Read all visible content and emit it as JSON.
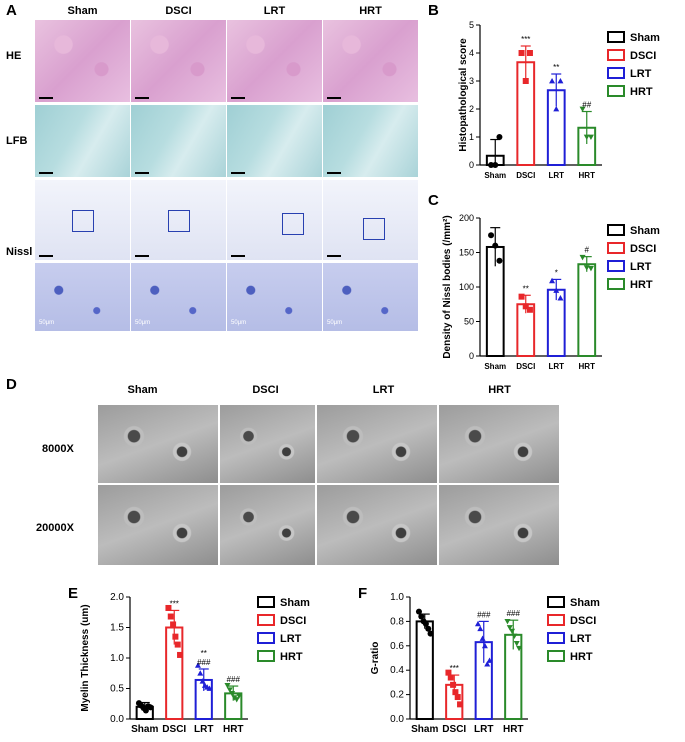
{
  "panel_letters": {
    "a": "A",
    "b": "B",
    "c": "C",
    "d": "D",
    "e": "E",
    "f": "F"
  },
  "panel_a": {
    "columns": [
      "Sham",
      "DSCI",
      "LRT",
      "HRT"
    ],
    "rows": [
      "HE",
      "LFB",
      "Nissl"
    ],
    "scale_label": "50μm"
  },
  "panel_d": {
    "columns": [
      "Sham",
      "DSCI",
      "LRT",
      "HRT"
    ],
    "rows": [
      "8000X",
      "20000X"
    ]
  },
  "colors": {
    "Sham": "#000000",
    "DSCI": "#e8272a",
    "LRT": "#1f1fd6",
    "HRT": "#2a8a2a"
  },
  "chart_data": [
    {
      "id": "B",
      "type": "bar",
      "categories": [
        "Sham",
        "DSCI",
        "LRT",
        "HRT"
      ],
      "values": [
        0.33,
        3.67,
        2.67,
        1.33
      ],
      "errors": [
        0.58,
        0.58,
        0.58,
        0.58
      ],
      "points": [
        [
          0,
          0,
          1
        ],
        [
          4,
          3,
          4
        ],
        [
          3,
          2,
          3
        ],
        [
          2,
          1,
          1
        ]
      ],
      "markers": [
        "circle",
        "square",
        "triangle",
        "triangle-down"
      ],
      "significance": [
        "",
        "***",
        "**",
        "##"
      ],
      "ylabel": "Histopathological score",
      "ylim": [
        0,
        5
      ],
      "yticks": [
        0,
        1,
        2,
        3,
        4,
        5
      ],
      "legend": [
        "Sham",
        "DSCI",
        "LRT",
        "HRT"
      ],
      "legend_position": "right"
    },
    {
      "id": "C",
      "type": "bar",
      "categories": [
        "Sham",
        "DSCI",
        "LRT",
        "HRT"
      ],
      "values": [
        158,
        75,
        96,
        133
      ],
      "errors": [
        28,
        13,
        15,
        11
      ],
      "points": [
        [
          175,
          160,
          138
        ],
        [
          86,
          72,
          67
        ],
        [
          109,
          95,
          84
        ],
        [
          143,
          128,
          127
        ]
      ],
      "markers": [
        "circle",
        "square",
        "triangle",
        "triangle-down"
      ],
      "significance": [
        "",
        "**",
        "*",
        "#"
      ],
      "ylabel": "Density of Nissl bodies (/mm²)",
      "ylim": [
        0,
        200
      ],
      "yticks": [
        0,
        50,
        100,
        150,
        200
      ],
      "legend": [
        "Sham",
        "DSCI",
        "LRT",
        "HRT"
      ],
      "legend_position": "right"
    },
    {
      "id": "E",
      "type": "bar",
      "categories": [
        "Sham",
        "DSCI",
        "LRT",
        "HRT"
      ],
      "values": [
        0.2,
        1.5,
        0.64,
        0.42
      ],
      "errors": [
        0.07,
        0.28,
        0.18,
        0.12
      ],
      "points": [
        [
          0.26,
          0.22,
          0.18,
          0.14,
          0.21,
          0.19
        ],
        [
          1.82,
          1.68,
          1.55,
          1.35,
          1.22,
          1.05
        ],
        [
          0.88,
          0.75,
          0.62,
          0.55,
          0.52,
          0.5
        ],
        [
          0.55,
          0.48,
          0.42,
          0.35,
          0.32,
          0.38
        ]
      ],
      "markers": [
        "circle",
        "square",
        "triangle",
        "triangle-down"
      ],
      "significance": [
        "",
        "***",
        "**\n###",
        "###"
      ],
      "ylabel": "Myelin Thickness (um)",
      "ylim": [
        0,
        2.0
      ],
      "yticks": [
        0.0,
        0.5,
        1.0,
        1.5,
        2.0
      ],
      "legend": [
        "Sham",
        "DSCI",
        "LRT",
        "HRT"
      ],
      "legend_position": "right"
    },
    {
      "id": "F",
      "type": "bar",
      "categories": [
        "Sham",
        "DSCI",
        "LRT",
        "HRT"
      ],
      "values": [
        0.8,
        0.28,
        0.63,
        0.69
      ],
      "errors": [
        0.06,
        0.08,
        0.17,
        0.12
      ],
      "points": [
        [
          0.88,
          0.84,
          0.8,
          0.78,
          0.74,
          0.7
        ],
        [
          0.38,
          0.34,
          0.28,
          0.22,
          0.18,
          0.12
        ],
        [
          0.78,
          0.74,
          0.66,
          0.6,
          0.45,
          0.48
        ],
        [
          0.8,
          0.75,
          0.72,
          0.68,
          0.62,
          0.58
        ]
      ],
      "markers": [
        "circle",
        "square",
        "triangle",
        "triangle-down"
      ],
      "significance": [
        "",
        "***",
        "###",
        "###"
      ],
      "ylabel": "G-ratio",
      "ylim": [
        0,
        1.0
      ],
      "yticks": [
        0.0,
        0.2,
        0.4,
        0.6,
        0.8,
        1.0
      ],
      "legend": [
        "Sham",
        "DSCI",
        "LRT",
        "HRT"
      ],
      "legend_position": "right"
    }
  ]
}
